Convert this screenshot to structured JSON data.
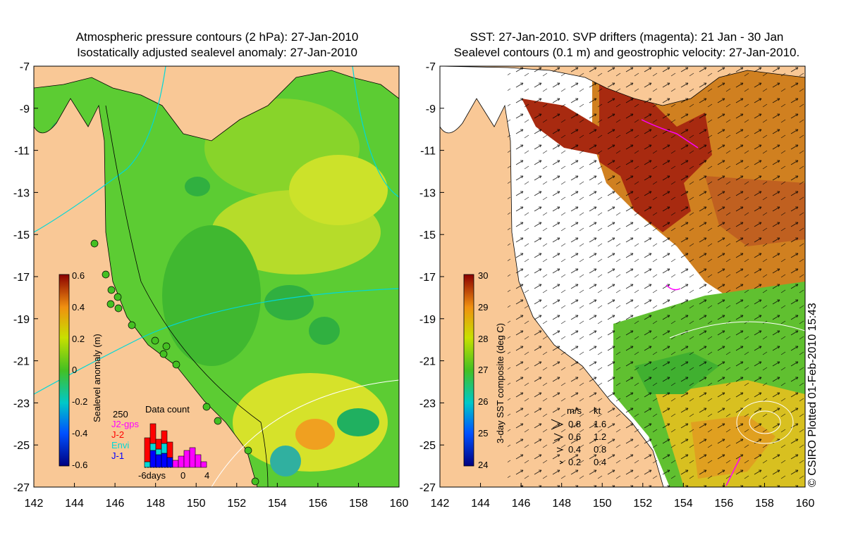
{
  "left_panel": {
    "title_line1": "Atmospheric pressure contours (2 hPa): 27-Jan-2010",
    "title_line2": "Isostatically adjusted sealevel anomaly: 27-Jan-2010",
    "colorbar": {
      "label": "Sealevel anomaly (m)",
      "range": [
        -0.6,
        0.6
      ],
      "ticks": [
        "0.6",
        "0.4",
        "0.2",
        "0",
        "-0.2",
        "-0.4",
        "-0.6"
      ]
    },
    "data_count": {
      "title": "Data count",
      "max_label": "250",
      "legend": [
        {
          "name": "J2-gps",
          "color": "#ff00ff"
        },
        {
          "name": "J-2",
          "color": "#ff0000"
        },
        {
          "name": "Envi",
          "color": "#00e5e5"
        },
        {
          "name": "J-1",
          "color": "#0000ff"
        }
      ],
      "x_labels": [
        "-6days",
        "0",
        "4"
      ]
    }
  },
  "right_panel": {
    "title_line1": "SST: 27-Jan-2010. SVP drifters (magenta): 21 Jan - 30 Jan",
    "title_line2": "Sealevel contours (0.1 m) and geostrophic velocity: 27-Jan-2010.",
    "colorbar": {
      "label": "3-day SST composite (deg C)",
      "range": [
        24,
        30
      ],
      "ticks": [
        "30",
        "29",
        "28",
        "27",
        "26",
        "25",
        "24"
      ]
    },
    "velocity_legend": {
      "header_ms": "m/s",
      "header_kt": "kt",
      "rows": [
        {
          "ms": "0.8",
          "kt": "1.6"
        },
        {
          "ms": "0.6",
          "kt": "1.2"
        },
        {
          "ms": "0.4",
          "kt": "0.8"
        },
        {
          "ms": "0.2",
          "kt": "0.4"
        }
      ]
    }
  },
  "axes": {
    "lat_labels": [
      "-7",
      "-9",
      "-11",
      "-13",
      "-15",
      "-17",
      "-19",
      "-21",
      "-23",
      "-25",
      "-27"
    ],
    "lon_labels": [
      "142",
      "144",
      "146",
      "148",
      "150",
      "152",
      "154",
      "156",
      "158",
      "160"
    ],
    "lat_range": [
      -27,
      -7
    ],
    "lon_range": [
      142,
      160
    ]
  },
  "credit": "© CSIRO Plotted 01-Feb-2010 15:43",
  "colors": {
    "land": "#f9c896",
    "sla_mid": "#66cc33",
    "sst_cloud": "#ffffff"
  }
}
